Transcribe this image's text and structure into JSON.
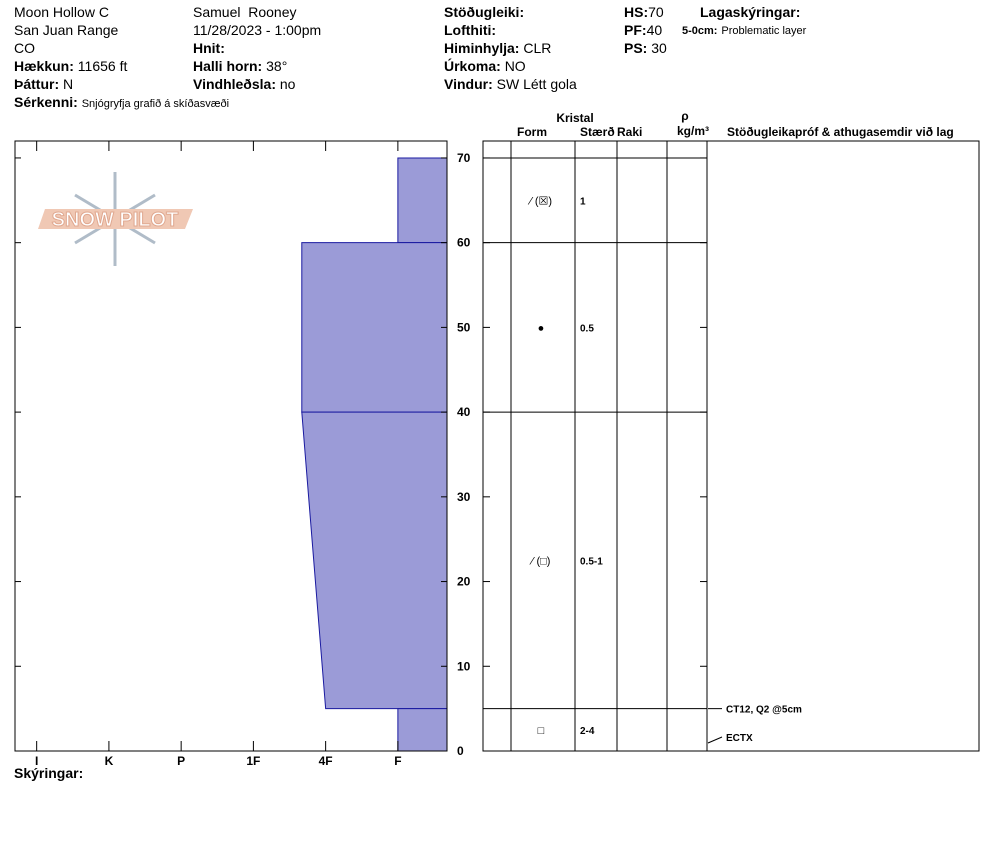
{
  "header": {
    "location": "Moon Hollow C",
    "range": "San Juan Range",
    "state": "CO",
    "elevation": {
      "label": "Hækkun:",
      "value": "11656 ft"
    },
    "aspect": {
      "label": "Þáttur:",
      "value": "N"
    },
    "features": {
      "label": "Sérkenni:",
      "value": "Snjógryfja grafið á skíðasvæði"
    },
    "observer": "Samuel  Rooney",
    "datetime": "11/28/2023 - 1:00pm",
    "coords": {
      "label": "Hnit:"
    },
    "slope": {
      "label": "Halli horn:",
      "value": "38°"
    },
    "wind_loading": {
      "label": "Vindhleðsla:",
      "value": "no"
    },
    "stability": {
      "label": "Stöðugleiki:"
    },
    "air_temp": {
      "label": "Lofthiti:"
    },
    "sky": {
      "label": "Himinhylja:",
      "value": "CLR"
    },
    "precip": {
      "label": "Úrkoma:",
      "value": "NO"
    },
    "wind": {
      "label": "Vindur:",
      "value": "SW Létt gola"
    },
    "hs": {
      "label": "HS:",
      "value": 70
    },
    "pf": {
      "label": "PF:",
      "value": 40
    },
    "ps": {
      "label": "PS:",
      "value": 30
    },
    "legend": {
      "title": "Lagaskýringar:",
      "items": [
        {
          "range": "5-0cm:",
          "text": "Problematic layer"
        }
      ]
    }
  },
  "logo": "SNOW PILOT",
  "chart_data": {
    "type": "snowpit",
    "xlim": [
      6.3,
      0.32
    ],
    "xticks": [
      {
        "value": 6,
        "label": "I"
      },
      {
        "value": 5,
        "label": "K"
      },
      {
        "value": 4,
        "label": "P"
      },
      {
        "value": 3,
        "label": "1F"
      },
      {
        "value": 2,
        "label": "4F"
      },
      {
        "value": 1,
        "label": "F"
      }
    ],
    "ylim": [
      0,
      72
    ],
    "yticks": [
      0,
      10,
      20,
      30,
      40,
      50,
      60,
      70
    ],
    "color": "#9b9bd7",
    "layers": {
      "top": [
        70,
        60,
        40,
        5
      ],
      "bottom": [
        60,
        40,
        5,
        0
      ],
      "hardness_top": [
        1,
        2.33,
        2.33,
        1
      ],
      "hardness_bottom": [
        1,
        2.33,
        2,
        1
      ]
    }
  },
  "table": {
    "headers": {
      "crystal": "Kristal",
      "form": "Form",
      "size": "Stærð",
      "moisture": "Raki",
      "density": "ρ",
      "density_unit": "kg/m³",
      "tests": "Stöðugleikapróf & athugasemdir við lag"
    },
    "rows": [
      {
        "form": "⁄ (☒)",
        "size": "1"
      },
      {
        "form": "●",
        "size": "0.5"
      },
      {
        "form": "⁄ (□)",
        "size": "0.5-1"
      },
      {
        "form": "□",
        "size": "2-4"
      }
    ],
    "tests": [
      {
        "depth": 5,
        "text": "CT12, Q2 @5cm"
      },
      {
        "depth": 0,
        "text": "ECTX"
      }
    ]
  },
  "footer": {
    "notes": "Skýringar:"
  }
}
